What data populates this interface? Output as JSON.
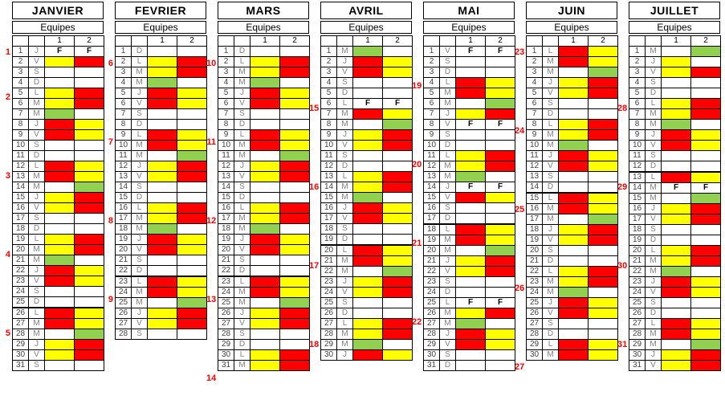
{
  "equipes_label": "Equipes",
  "team_headers": [
    "1",
    "2"
  ],
  "holiday_label": "F",
  "colors": {
    "yellow": "#FFFF00",
    "red": "#FF0000",
    "green": "#92D050",
    "white": "#FFFFFF",
    "week_number": "#FF0000",
    "border": "#000000"
  },
  "cell_code_legend": "per day: [day_number, day_letter, two chars = team1,team2 cell: Y yellow, R red, G green, W white, F holiday]",
  "months": [
    {
      "name": "JANVIER",
      "weeks": [
        {
          "num": "1",
          "day": 1
        },
        {
          "num": "2",
          "day": 5
        },
        {
          "num": "3",
          "day": 12
        },
        {
          "num": "4",
          "day": 19
        },
        {
          "num": "5",
          "day": 26
        }
      ],
      "thick_above_day": 26,
      "days": [
        [
          1,
          "J",
          "FF"
        ],
        [
          2,
          "V",
          "YR"
        ],
        [
          3,
          "S",
          "WW"
        ],
        [
          4,
          "D",
          "WW"
        ],
        [
          5,
          "L",
          "YR"
        ],
        [
          6,
          "M",
          "YR"
        ],
        [
          7,
          "M",
          "GW"
        ],
        [
          8,
          "J",
          "RY"
        ],
        [
          9,
          "V",
          "RY"
        ],
        [
          10,
          "S",
          "WW"
        ],
        [
          11,
          "D",
          "WW"
        ],
        [
          12,
          "L",
          "RY"
        ],
        [
          13,
          "M",
          "RY"
        ],
        [
          14,
          "M",
          "WG"
        ],
        [
          15,
          "J",
          "YR"
        ],
        [
          16,
          "V",
          "YR"
        ],
        [
          17,
          "S",
          "WW"
        ],
        [
          18,
          "D",
          "WW"
        ],
        [
          19,
          "L",
          "YR"
        ],
        [
          20,
          "M",
          "YR"
        ],
        [
          21,
          "M",
          "GW"
        ],
        [
          22,
          "J",
          "RY"
        ],
        [
          23,
          "V",
          "RY"
        ],
        [
          24,
          "S",
          "WW"
        ],
        [
          25,
          "D",
          "WW"
        ],
        [
          26,
          "L",
          "RY"
        ],
        [
          27,
          "M",
          "RY"
        ],
        [
          28,
          "M",
          "WG"
        ],
        [
          29,
          "J",
          "YR"
        ],
        [
          30,
          "V",
          "YR"
        ],
        [
          31,
          "S",
          "WW"
        ]
      ]
    },
    {
      "name": "FEVRIER",
      "weeks": [
        {
          "num": "6",
          "day": 2
        },
        {
          "num": "7",
          "day": 9
        },
        {
          "num": "8",
          "day": 16
        },
        {
          "num": "9",
          "day": 23
        }
      ],
      "thick_above_day": 23,
      "days": [
        [
          1,
          "D",
          "WW"
        ],
        [
          2,
          "L",
          "YR"
        ],
        [
          3,
          "M",
          "YR"
        ],
        [
          4,
          "M",
          "GW"
        ],
        [
          5,
          "J",
          "RY"
        ],
        [
          6,
          "V",
          "RY"
        ],
        [
          7,
          "S",
          "WW"
        ],
        [
          8,
          "D",
          "WW"
        ],
        [
          9,
          "L",
          "RY"
        ],
        [
          10,
          "M",
          "RY"
        ],
        [
          11,
          "M",
          "WG"
        ],
        [
          12,
          "J",
          "YR"
        ],
        [
          13,
          "V",
          "YR"
        ],
        [
          14,
          "S",
          "WW"
        ],
        [
          15,
          "D",
          "WW"
        ],
        [
          16,
          "L",
          "YR"
        ],
        [
          17,
          "M",
          "YR"
        ],
        [
          18,
          "M",
          "GW"
        ],
        [
          19,
          "J",
          "RY"
        ],
        [
          20,
          "V",
          "RY"
        ],
        [
          21,
          "S",
          "WW"
        ],
        [
          22,
          "D",
          "WW"
        ],
        [
          23,
          "L",
          "RY"
        ],
        [
          24,
          "M",
          "RY"
        ],
        [
          25,
          "M",
          "WG"
        ],
        [
          26,
          "J",
          "YR"
        ],
        [
          27,
          "V",
          "YR"
        ],
        [
          28,
          "S",
          "WW"
        ]
      ]
    },
    {
      "name": "MARS",
      "weeks": [
        {
          "num": "10",
          "day": 2
        },
        {
          "num": "11",
          "day": 9
        },
        {
          "num": "12",
          "day": 16
        },
        {
          "num": "13",
          "day": 23
        },
        {
          "num": "14",
          "day": 30
        }
      ],
      "thick_above_day": 23,
      "days": [
        [
          1,
          "D",
          "WW"
        ],
        [
          2,
          "L",
          "YR"
        ],
        [
          3,
          "M",
          "YR"
        ],
        [
          4,
          "M",
          "GW"
        ],
        [
          5,
          "J",
          "RY"
        ],
        [
          6,
          "V",
          "RY"
        ],
        [
          7,
          "S",
          "WW"
        ],
        [
          8,
          "D",
          "WW"
        ],
        [
          9,
          "L",
          "RY"
        ],
        [
          10,
          "M",
          "RY"
        ],
        [
          11,
          "M",
          "WG"
        ],
        [
          12,
          "J",
          "YR"
        ],
        [
          13,
          "V",
          "YR"
        ],
        [
          14,
          "S",
          "WW"
        ],
        [
          15,
          "D",
          "WW"
        ],
        [
          16,
          "L",
          "YR"
        ],
        [
          17,
          "M",
          "YR"
        ],
        [
          18,
          "M",
          "GW"
        ],
        [
          19,
          "J",
          "RY"
        ],
        [
          20,
          "V",
          "RY"
        ],
        [
          21,
          "S",
          "WW"
        ],
        [
          22,
          "D",
          "WW"
        ],
        [
          23,
          "L",
          "RY"
        ],
        [
          24,
          "M",
          "RY"
        ],
        [
          25,
          "M",
          "WG"
        ],
        [
          26,
          "J",
          "YR"
        ],
        [
          27,
          "V",
          "YR"
        ],
        [
          28,
          "S",
          "WW"
        ],
        [
          29,
          "D",
          "WW"
        ],
        [
          30,
          "L",
          "YR"
        ],
        [
          31,
          "M",
          "YR"
        ]
      ]
    },
    {
      "name": "AVRIL",
      "weeks": [
        {
          "num": "15",
          "day": 6
        },
        {
          "num": "16",
          "day": 13
        },
        {
          "num": "17",
          "day": 20
        },
        {
          "num": "18",
          "day": 27
        }
      ],
      "thick_above_day": 20,
      "days": [
        [
          1,
          "M",
          "GW"
        ],
        [
          2,
          "J",
          "RY"
        ],
        [
          3,
          "V",
          "RY"
        ],
        [
          4,
          "S",
          "WW"
        ],
        [
          5,
          "D",
          "WW"
        ],
        [
          6,
          "L",
          "FF"
        ],
        [
          7,
          "M",
          "RY"
        ],
        [
          8,
          "M",
          "WG"
        ],
        [
          9,
          "J",
          "YR"
        ],
        [
          10,
          "V",
          "YR"
        ],
        [
          11,
          "S",
          "WW"
        ],
        [
          12,
          "D",
          "WW"
        ],
        [
          13,
          "L",
          "YR"
        ],
        [
          14,
          "M",
          "YR"
        ],
        [
          15,
          "M",
          "GW"
        ],
        [
          16,
          "J",
          "RY"
        ],
        [
          17,
          "V",
          "RY"
        ],
        [
          18,
          "S",
          "WW"
        ],
        [
          19,
          "D",
          "WW"
        ],
        [
          20,
          "L",
          "RY"
        ],
        [
          21,
          "M",
          "RY"
        ],
        [
          22,
          "M",
          "WG"
        ],
        [
          23,
          "J",
          "YR"
        ],
        [
          24,
          "V",
          "YR"
        ],
        [
          25,
          "S",
          "WW"
        ],
        [
          26,
          "D",
          "WW"
        ],
        [
          27,
          "L",
          "YR"
        ],
        [
          28,
          "M",
          "YR"
        ],
        [
          29,
          "M",
          "GW"
        ],
        [
          30,
          "J",
          "RY"
        ]
      ]
    },
    {
      "name": "MAI",
      "weeks": [
        {
          "num": "19",
          "day": 4
        },
        {
          "num": "20",
          "day": 11
        },
        {
          "num": "21",
          "day": 18
        },
        {
          "num": "22",
          "day": 25
        }
      ],
      "thick_above_day": 18,
      "days": [
        [
          1,
          "V",
          "FF"
        ],
        [
          2,
          "S",
          "WW"
        ],
        [
          3,
          "D",
          "WW"
        ],
        [
          4,
          "L",
          "RY"
        ],
        [
          5,
          "M",
          "RY"
        ],
        [
          6,
          "M",
          "WG"
        ],
        [
          7,
          "J",
          "YR"
        ],
        [
          8,
          "V",
          "FF"
        ],
        [
          9,
          "S",
          "WW"
        ],
        [
          10,
          "D",
          "WW"
        ],
        [
          11,
          "L",
          "YR"
        ],
        [
          12,
          "M",
          "YR"
        ],
        [
          13,
          "M",
          "GW"
        ],
        [
          14,
          "J",
          "FF"
        ],
        [
          15,
          "V",
          "RY"
        ],
        [
          16,
          "S",
          "WW"
        ],
        [
          17,
          "D",
          "WW"
        ],
        [
          18,
          "L",
          "RY"
        ],
        [
          19,
          "M",
          "RY"
        ],
        [
          20,
          "M",
          "WG"
        ],
        [
          21,
          "J",
          "YR"
        ],
        [
          22,
          "V",
          "YR"
        ],
        [
          23,
          "S",
          "WW"
        ],
        [
          24,
          "D",
          "WW"
        ],
        [
          25,
          "L",
          "FF"
        ],
        [
          26,
          "M",
          "YR"
        ],
        [
          27,
          "M",
          "GW"
        ],
        [
          28,
          "J",
          "RY"
        ],
        [
          29,
          "V",
          "RY"
        ],
        [
          30,
          "S",
          "WW"
        ],
        [
          31,
          "D",
          "WW"
        ]
      ]
    },
    {
      "name": "JUIN",
      "weeks": [
        {
          "num": "23",
          "day": 1
        },
        {
          "num": "24",
          "day": 8
        },
        {
          "num": "25",
          "day": 15
        },
        {
          "num": "26",
          "day": 22
        },
        {
          "num": "27",
          "day": 29
        }
      ],
      "thick_above_day": 15,
      "days": [
        [
          1,
          "L",
          "RY"
        ],
        [
          2,
          "M",
          "RY"
        ],
        [
          3,
          "M",
          "WG"
        ],
        [
          4,
          "J",
          "YR"
        ],
        [
          5,
          "V",
          "YR"
        ],
        [
          6,
          "S",
          "WW"
        ],
        [
          7,
          "D",
          "WW"
        ],
        [
          8,
          "L",
          "YR"
        ],
        [
          9,
          "M",
          "YR"
        ],
        [
          10,
          "M",
          "GW"
        ],
        [
          11,
          "J",
          "RY"
        ],
        [
          12,
          "V",
          "RY"
        ],
        [
          13,
          "S",
          "WW"
        ],
        [
          14,
          "D",
          "WW"
        ],
        [
          15,
          "L",
          "RY"
        ],
        [
          16,
          "M",
          "RY"
        ],
        [
          17,
          "M",
          "WG"
        ],
        [
          18,
          "J",
          "YR"
        ],
        [
          19,
          "V",
          "YR"
        ],
        [
          20,
          "S",
          "WW"
        ],
        [
          21,
          "D",
          "WW"
        ],
        [
          22,
          "L",
          "YR"
        ],
        [
          23,
          "M",
          "YR"
        ],
        [
          24,
          "M",
          "GW"
        ],
        [
          25,
          "J",
          "RY"
        ],
        [
          26,
          "V",
          "RY"
        ],
        [
          27,
          "S",
          "WW"
        ],
        [
          28,
          "D",
          "WW"
        ],
        [
          29,
          "L",
          "RY"
        ],
        [
          30,
          "M",
          "RY"
        ]
      ]
    },
    {
      "name": "JUILLET",
      "weeks": [
        {
          "num": "28",
          "day": 6
        },
        {
          "num": "29",
          "day": 13
        },
        {
          "num": "30",
          "day": 20
        },
        {
          "num": "31",
          "day": 27
        }
      ],
      "thick_above_day": 13,
      "days": [
        [
          1,
          "M",
          "WG"
        ],
        [
          2,
          "J",
          "YW"
        ],
        [
          3,
          "V",
          "YR"
        ],
        [
          4,
          "S",
          "WW"
        ],
        [
          5,
          "D",
          "WW"
        ],
        [
          6,
          "L",
          "YR"
        ],
        [
          7,
          "M",
          "YR"
        ],
        [
          8,
          "M",
          "GW"
        ],
        [
          9,
          "J",
          "RY"
        ],
        [
          10,
          "V",
          "RY"
        ],
        [
          11,
          "S",
          "WW"
        ],
        [
          12,
          "D",
          "WW"
        ],
        [
          13,
          "L",
          "RY"
        ],
        [
          14,
          "M",
          "FF"
        ],
        [
          15,
          "M",
          "WG"
        ],
        [
          16,
          "J",
          "YR"
        ],
        [
          17,
          "V",
          "YR"
        ],
        [
          18,
          "S",
          "WW"
        ],
        [
          19,
          "D",
          "WW"
        ],
        [
          20,
          "L",
          "YR"
        ],
        [
          21,
          "M",
          "YR"
        ],
        [
          22,
          "M",
          "GW"
        ],
        [
          23,
          "J",
          "RY"
        ],
        [
          24,
          "V",
          "RY"
        ],
        [
          25,
          "S",
          "WW"
        ],
        [
          26,
          "D",
          "WW"
        ],
        [
          27,
          "L",
          "RY"
        ],
        [
          28,
          "M",
          "RY"
        ],
        [
          29,
          "M",
          "WG"
        ],
        [
          30,
          "J",
          "YR"
        ],
        [
          31,
          "V",
          "YR"
        ]
      ]
    }
  ]
}
